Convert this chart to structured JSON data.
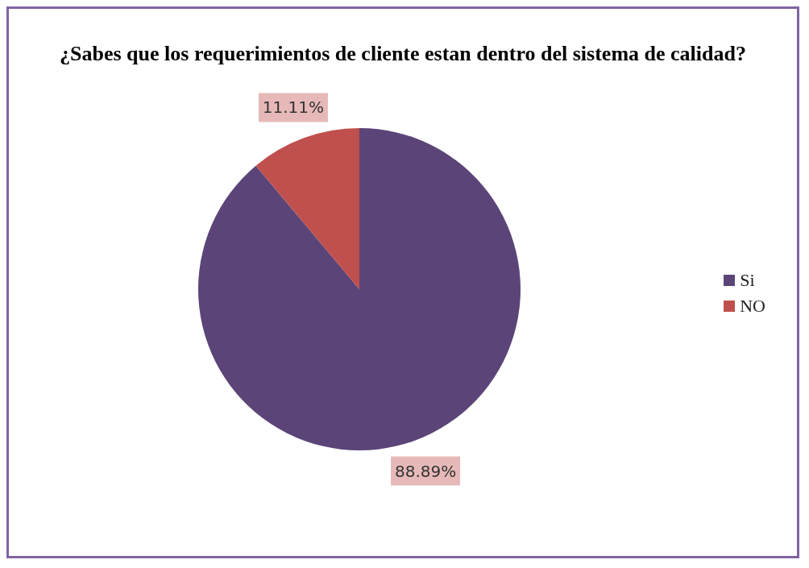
{
  "chart_data": {
    "type": "pie",
    "title": "¿Sabes que los requerimientos de cliente estan dentro del sistema de calidad?",
    "categories": [
      "Si",
      "NO"
    ],
    "values": [
      88.89,
      11.11
    ],
    "colors": [
      "#5b4578",
      "#c0504d"
    ],
    "value_labels": [
      "88.89%",
      "11.11%"
    ],
    "legend": "right"
  }
}
